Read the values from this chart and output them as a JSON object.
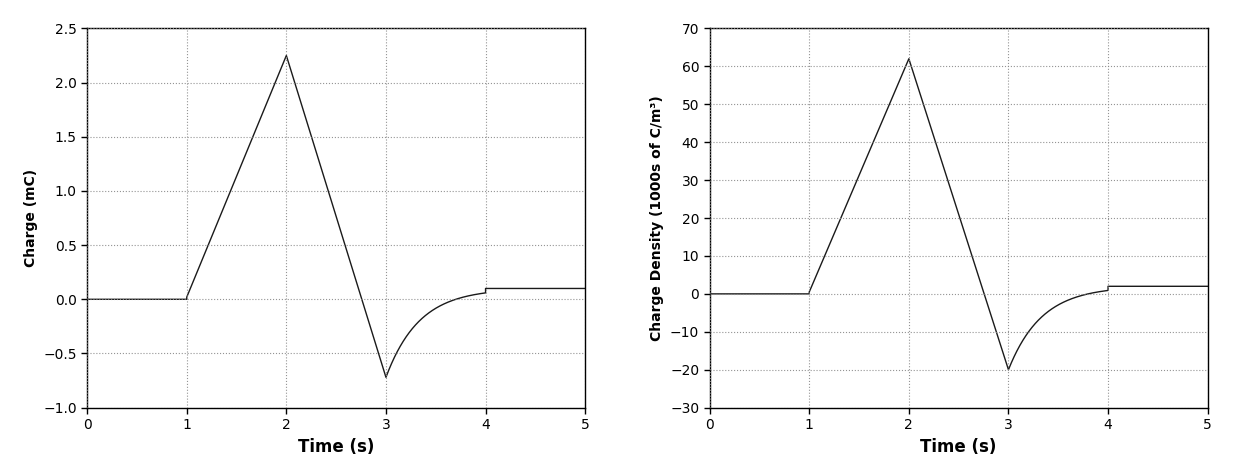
{
  "left": {
    "ylabel": "Charge (mC)",
    "xlabel": "Time (s)",
    "xlim": [
      0,
      5
    ],
    "ylim": [
      -1.0,
      2.5
    ],
    "yticks": [
      -1.0,
      -0.5,
      0.0,
      0.5,
      1.0,
      1.5,
      2.0,
      2.5
    ],
    "xticks": [
      0,
      1,
      2,
      3,
      4,
      5
    ],
    "time_points": [
      0.0,
      1.0,
      2.0,
      3.0,
      4.0,
      5.0
    ],
    "charge_points": [
      0.0,
      0.02,
      2.25,
      -0.72,
      0.1,
      0.1
    ]
  },
  "right": {
    "ylabel": "Charge Density (1000s of C/m³)",
    "xlabel": "Time (s)",
    "xlim": [
      0,
      5
    ],
    "ylim": [
      -30,
      70
    ],
    "yticks": [
      -30,
      -20,
      -10,
      0,
      10,
      20,
      30,
      40,
      50,
      60,
      70
    ],
    "xticks": [
      0,
      1,
      2,
      3,
      4,
      5
    ],
    "time_points": [
      0.0,
      1.0,
      2.0,
      3.0,
      4.0,
      5.0
    ],
    "density_points": [
      0.0,
      0.5,
      62.0,
      -20.0,
      2.0,
      2.0
    ]
  },
  "line_color": "#1a1a1a",
  "background_color": "#ffffff",
  "grid_color": "#888888",
  "font_family": "DejaVu Sans",
  "figsize": [
    12.45,
    4.74
  ],
  "dpi": 100
}
